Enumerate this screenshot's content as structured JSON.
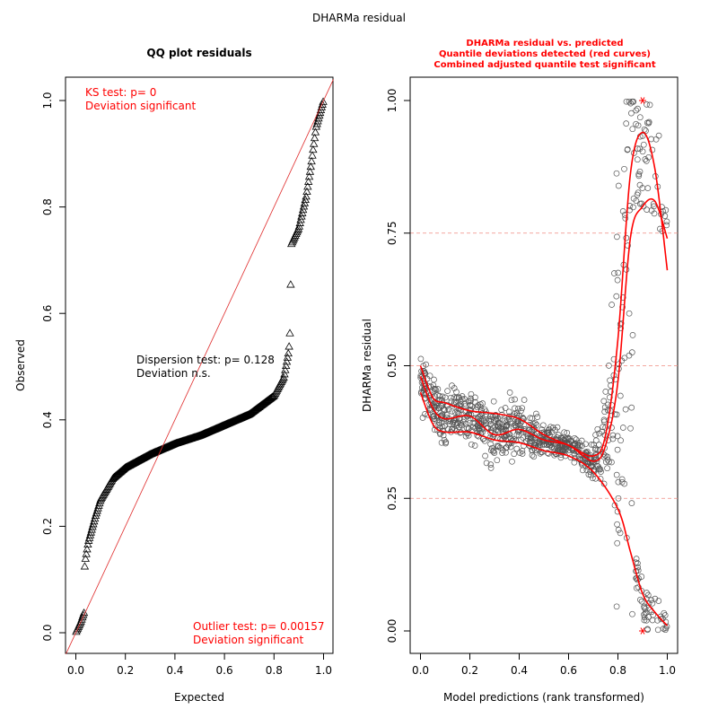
{
  "main_title": "DHARMa residual",
  "colors": {
    "red": "#ff0000",
    "line_red": "#df2a2a",
    "dash_red": "#f08a80",
    "black": "#000000",
    "point": "#555555"
  },
  "chart_data": [
    {
      "type": "scatter",
      "title": "QQ plot residuals",
      "xlabel": "Expected",
      "ylabel": "Observed",
      "xlim": [
        0,
        1
      ],
      "ylim": [
        0,
        1
      ],
      "xticks": [
        "0.0",
        "0.2",
        "0.4",
        "0.6",
        "0.8",
        "1.0"
      ],
      "yticks": [
        "0.0",
        "0.2",
        "0.4",
        "0.6",
        "0.8",
        "1.0"
      ],
      "marker": "triangle",
      "reference_line": "y = x",
      "quantile_curve": [
        [
          0.0,
          0.0
        ],
        [
          0.02,
          0.02
        ],
        [
          0.035,
          0.04
        ],
        [
          0.036,
          0.13
        ],
        [
          0.05,
          0.17
        ],
        [
          0.08,
          0.22
        ],
        [
          0.1,
          0.25
        ],
        [
          0.15,
          0.29
        ],
        [
          0.2,
          0.31
        ],
        [
          0.3,
          0.335
        ],
        [
          0.4,
          0.355
        ],
        [
          0.5,
          0.37
        ],
        [
          0.6,
          0.39
        ],
        [
          0.7,
          0.41
        ],
        [
          0.8,
          0.445
        ],
        [
          0.84,
          0.48
        ],
        [
          0.86,
          0.53
        ],
        [
          0.865,
          0.57
        ],
        [
          0.868,
          0.685
        ],
        [
          0.87,
          0.73
        ],
        [
          0.9,
          0.76
        ],
        [
          0.93,
          0.82
        ],
        [
          0.95,
          0.88
        ],
        [
          0.97,
          0.95
        ],
        [
          1.0,
          1.0
        ]
      ],
      "annotations": {
        "ks_test": "KS test: p= 0",
        "ks_deviation": "Deviation  significant",
        "dispersion_test": "Dispersion test: p= 0.128",
        "dispersion_deviation": "Deviation  n.s.",
        "outlier_test": "Outlier test: p= 0.00157",
        "outlier_deviation": "Deviation  significant"
      }
    },
    {
      "type": "scatter",
      "title_lines": [
        "DHARMa residual vs. predicted",
        "Quantile deviations detected (red curves)",
        "Combined adjusted quantile test significant"
      ],
      "xlabel": "Model predictions (rank transformed)",
      "ylabel": "DHARMa residual",
      "xlim": [
        0,
        1
      ],
      "ylim": [
        0,
        1
      ],
      "xticks": [
        "0.0",
        "0.2",
        "0.4",
        "0.6",
        "0.8",
        "1.0"
      ],
      "yticks": [
        "0.00",
        "0.25",
        "0.50",
        "0.75",
        "1.00"
      ],
      "reference_lines_y": [
        0.25,
        0.5,
        0.75
      ],
      "marker": "circle",
      "quantile_curves": [
        {
          "quantile": 0.25,
          "points": [
            [
              0.0,
              0.45
            ],
            [
              0.05,
              0.39
            ],
            [
              0.1,
              0.375
            ],
            [
              0.2,
              0.375
            ],
            [
              0.3,
              0.36
            ],
            [
              0.4,
              0.355
            ],
            [
              0.5,
              0.34
            ],
            [
              0.6,
              0.33
            ],
            [
              0.7,
              0.3
            ],
            [
              0.8,
              0.23
            ],
            [
              0.85,
              0.15
            ],
            [
              0.9,
              0.07
            ],
            [
              0.95,
              0.035
            ],
            [
              1.0,
              0.01
            ]
          ]
        },
        {
          "quantile": 0.5,
          "points": [
            [
              0.0,
              0.48
            ],
            [
              0.05,
              0.42
            ],
            [
              0.1,
              0.4
            ],
            [
              0.2,
              0.405
            ],
            [
              0.3,
              0.37
            ],
            [
              0.4,
              0.38
            ],
            [
              0.5,
              0.36
            ],
            [
              0.6,
              0.35
            ],
            [
              0.7,
              0.32
            ],
            [
              0.75,
              0.35
            ],
            [
              0.8,
              0.47
            ],
            [
              0.85,
              0.74
            ],
            [
              0.9,
              0.8
            ],
            [
              0.95,
              0.81
            ],
            [
              1.0,
              0.74
            ]
          ]
        },
        {
          "quantile": 0.75,
          "points": [
            [
              0.0,
              0.5
            ],
            [
              0.05,
              0.44
            ],
            [
              0.1,
              0.43
            ],
            [
              0.2,
              0.415
            ],
            [
              0.3,
              0.41
            ],
            [
              0.4,
              0.4
            ],
            [
              0.5,
              0.37
            ],
            [
              0.6,
              0.35
            ],
            [
              0.7,
              0.33
            ],
            [
              0.75,
              0.37
            ],
            [
              0.8,
              0.55
            ],
            [
              0.85,
              0.86
            ],
            [
              0.9,
              0.94
            ],
            [
              0.95,
              0.87
            ],
            [
              1.0,
              0.68
            ]
          ]
        }
      ],
      "outlier_points": [
        [
          0.9,
          1.0
        ],
        [
          0.9,
          0.0
        ]
      ]
    }
  ]
}
